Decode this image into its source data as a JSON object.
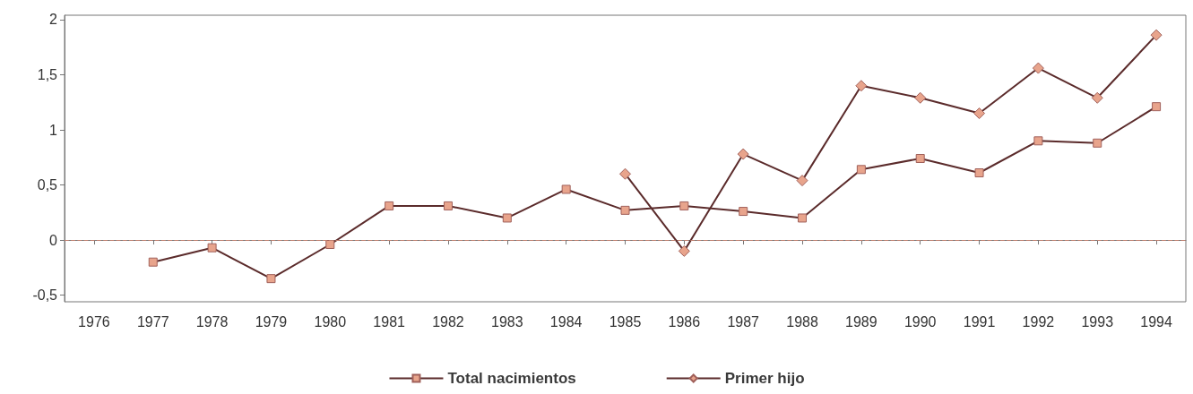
{
  "chart_data": {
    "type": "line",
    "categories": [
      "1976",
      "1977",
      "1978",
      "1979",
      "1980",
      "1981",
      "1982",
      "1983",
      "1984",
      "1985",
      "1986",
      "1987",
      "1988",
      "1989",
      "1990",
      "1991",
      "1992",
      "1993",
      "1994"
    ],
    "series": [
      {
        "name": "Total nacimientos",
        "color": "#e8a48c",
        "marker": "square",
        "values": [
          null,
          -0.2,
          -0.07,
          -0.35,
          -0.04,
          0.31,
          0.31,
          0.2,
          0.46,
          0.27,
          0.31,
          0.26,
          0.2,
          0.64,
          0.74,
          0.61,
          0.9,
          0.88,
          1.21
        ]
      },
      {
        "name": "Primer hijo",
        "color": "#e8a48c",
        "marker": "diamond",
        "values": [
          null,
          null,
          null,
          null,
          null,
          null,
          null,
          null,
          null,
          0.6,
          -0.1,
          0.78,
          0.54,
          1.4,
          1.29,
          1.15,
          1.56,
          1.29,
          1.86
        ]
      }
    ],
    "ylim": [
      -0.56,
      2.04
    ],
    "yticks": [
      {
        "value": -0.5,
        "label": "-0,5"
      },
      0,
      {
        "value": 0.5,
        "label": "0,5"
      },
      1,
      {
        "value": 1.5,
        "label": "1,5"
      },
      2
    ],
    "ref_lines": [
      {
        "axis": "y",
        "value": 0,
        "line_style": "dashed",
        "color": "#c08070"
      }
    ],
    "grid": false,
    "legend": "bottom",
    "line_style": "solid"
  }
}
